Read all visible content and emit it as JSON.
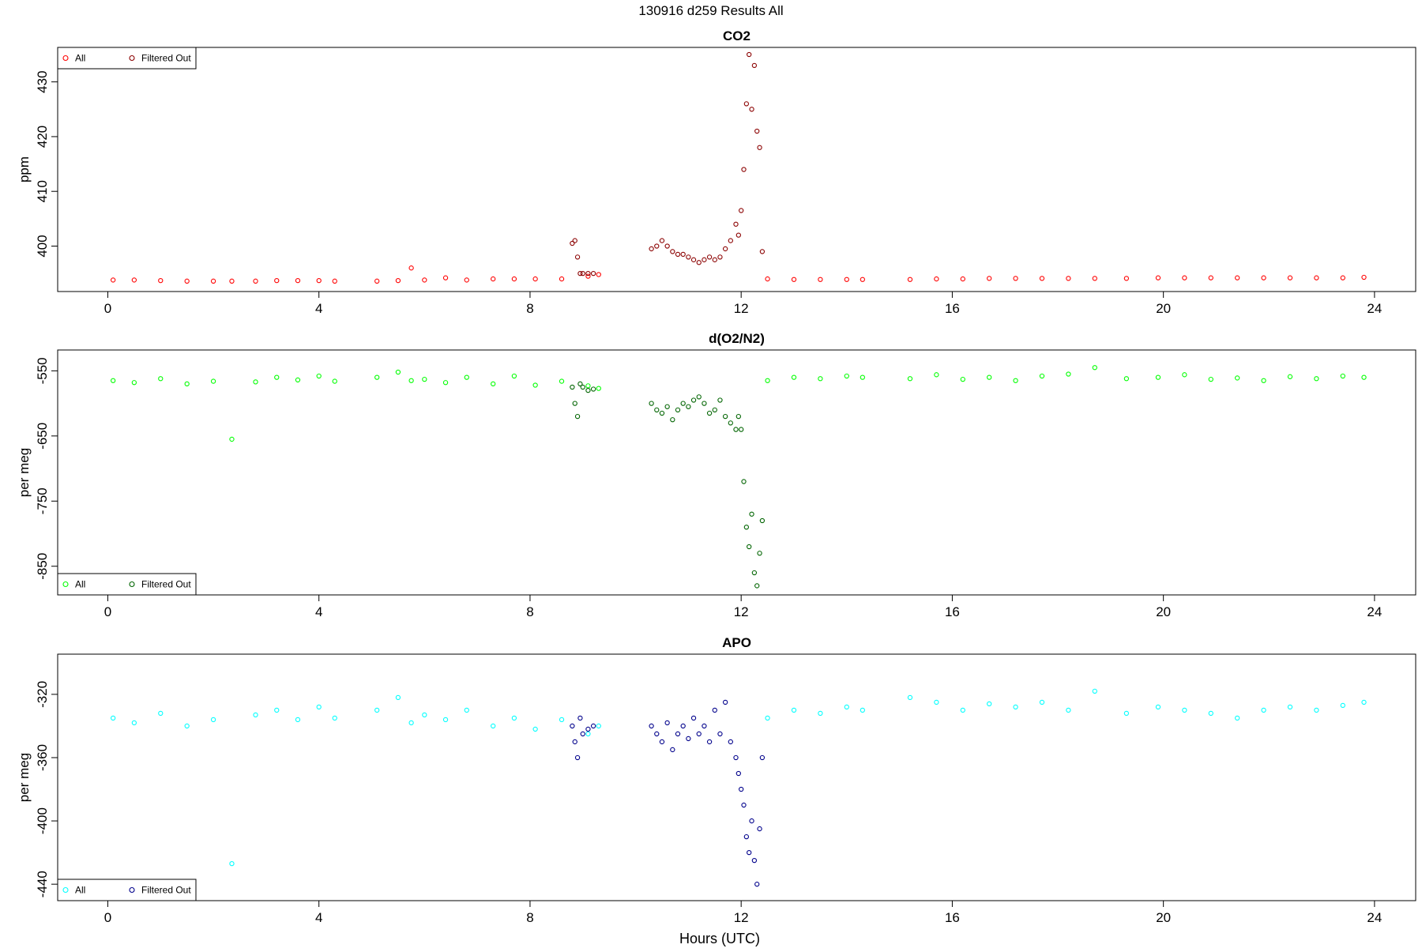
{
  "title": "130916   d259   Results All",
  "x_label": "Hours (UTC)",
  "chart_data": [
    {
      "type": "scatter",
      "title": "CO2",
      "y_label": "ppm",
      "xlim": [
        -0.95,
        24.78
      ],
      "xticks": [
        0,
        4,
        8,
        12,
        16,
        20,
        24
      ],
      "ylim": [
        391.7,
        436.3
      ],
      "yticks": [
        400,
        410,
        420,
        430
      ],
      "legend": "top-left",
      "series": [
        {
          "name": "All",
          "color": "#ff0000",
          "x": [
            0.1,
            0.5,
            1,
            1.5,
            2,
            2.35,
            2.8,
            3.2,
            3.6,
            4,
            4.3,
            5.1,
            5.5,
            5.75,
            6,
            6.4,
            6.8,
            7.3,
            7.7,
            8.1,
            8.6,
            9.1,
            9.3,
            12.5,
            13,
            13.5,
            14,
            14.3,
            15.2,
            15.7,
            16.2,
            16.7,
            17.2,
            17.7,
            18.2,
            18.7,
            19.3,
            19.9,
            20.4,
            20.9,
            21.4,
            21.9,
            22.4,
            22.9,
            23.4,
            23.8
          ],
          "values": [
            393.8,
            393.8,
            393.7,
            393.6,
            393.6,
            393.6,
            393.6,
            393.7,
            393.7,
            393.7,
            393.6,
            393.6,
            393.7,
            396,
            393.8,
            394.2,
            393.8,
            394,
            394,
            394,
            394,
            394.5,
            394.8,
            394,
            393.9,
            393.9,
            393.9,
            393.9,
            393.9,
            394,
            394,
            394.1,
            394.1,
            394.1,
            394.1,
            394.1,
            394.1,
            394.2,
            394.2,
            394.2,
            394.2,
            394.2,
            394.2,
            394.2,
            394.2,
            394.3
          ]
        },
        {
          "name": "Filtered Out",
          "color": "#8b0000",
          "x": [
            8.8,
            8.85,
            8.9,
            8.95,
            9.0,
            9.1,
            9.2,
            10.3,
            10.4,
            10.5,
            10.6,
            10.7,
            10.8,
            10.9,
            11.0,
            11.1,
            11.2,
            11.3,
            11.4,
            11.5,
            11.6,
            11.7,
            11.8,
            11.9,
            11.95,
            12.0,
            12.05,
            12.1,
            12.15,
            12.2,
            12.25,
            12.3,
            12.35,
            12.4
          ],
          "values": [
            400.5,
            401,
            398,
            395,
            395,
            395,
            395,
            399.5,
            400,
            401,
            400,
            399,
            398.5,
            398.5,
            398,
            397.5,
            397,
            397.5,
            398,
            397.5,
            398,
            399.5,
            401,
            404,
            402,
            406.5,
            414,
            426,
            435,
            425,
            433,
            421,
            418,
            399
          ]
        }
      ]
    },
    {
      "type": "scatter",
      "title": "d(O2/N2)",
      "y_label": "per meg",
      "xlim": [
        -0.95,
        24.78
      ],
      "xticks": [
        0,
        4,
        8,
        12,
        16,
        20,
        24
      ],
      "ylim": [
        -894,
        -518
      ],
      "yticks": [
        -550,
        -650,
        -750,
        -850
      ],
      "legend": "bottom-left",
      "series": [
        {
          "name": "All",
          "color": "#00ff00",
          "x": [
            0.1,
            0.5,
            1,
            1.5,
            2,
            2.35,
            2.8,
            3.2,
            3.6,
            4,
            4.3,
            5.1,
            5.5,
            5.75,
            6,
            6.4,
            6.8,
            7.3,
            7.7,
            8.1,
            8.6,
            9.1,
            9.3,
            12.5,
            13,
            13.5,
            14,
            14.3,
            15.2,
            15.7,
            16.2,
            16.7,
            17.2,
            17.7,
            18.2,
            18.7,
            19.3,
            19.9,
            20.4,
            20.9,
            21.4,
            21.9,
            22.4,
            22.9,
            23.4,
            23.8
          ],
          "values": [
            -565,
            -568,
            -562,
            -570,
            -566,
            -655,
            -567,
            -560,
            -564,
            -558,
            -566,
            -560,
            -552,
            -565,
            -563,
            -568,
            -560,
            -570,
            -558,
            -572,
            -566,
            -573,
            -577,
            -565,
            -560,
            -562,
            -558,
            -560,
            -562,
            -556,
            -563,
            -560,
            -565,
            -558,
            -555,
            -545,
            -562,
            -560,
            -556,
            -563,
            -561,
            -565,
            -559,
            -562,
            -558,
            -560
          ]
        },
        {
          "name": "Filtered Out",
          "color": "#006400",
          "x": [
            8.8,
            8.85,
            8.9,
            8.95,
            9.0,
            9.1,
            9.2,
            10.3,
            10.4,
            10.5,
            10.6,
            10.7,
            10.8,
            10.9,
            11.0,
            11.1,
            11.2,
            11.3,
            11.4,
            11.5,
            11.6,
            11.7,
            11.8,
            11.9,
            11.95,
            12.0,
            12.05,
            12.1,
            12.15,
            12.2,
            12.25,
            12.3,
            12.35,
            12.4
          ],
          "values": [
            -575,
            -600,
            -620,
            -570,
            -575,
            -580,
            -578,
            -600,
            -610,
            -615,
            -605,
            -625,
            -610,
            -600,
            -605,
            -595,
            -590,
            -600,
            -615,
            -610,
            -595,
            -620,
            -630,
            -640,
            -620,
            -640,
            -720,
            -790,
            -820,
            -770,
            -860,
            -880,
            -830,
            -780
          ]
        }
      ]
    },
    {
      "type": "scatter",
      "title": "APO",
      "y_label": "per meg",
      "xlim": [
        -0.95,
        24.78
      ],
      "xticks": [
        0,
        4,
        8,
        12,
        16,
        20,
        24
      ],
      "ylim": [
        -450.4,
        -294.6
      ],
      "yticks": [
        -320,
        -360,
        -400,
        -440
      ],
      "legend": "bottom-left",
      "series": [
        {
          "name": "All",
          "color": "#00ffff",
          "x": [
            0.1,
            0.5,
            1,
            1.5,
            2,
            2.35,
            2.8,
            3.2,
            3.6,
            4,
            4.3,
            5.1,
            5.5,
            5.75,
            6,
            6.4,
            6.8,
            7.3,
            7.7,
            8.1,
            8.6,
            9.1,
            9.3,
            12.5,
            13,
            13.5,
            14,
            14.3,
            15.2,
            15.7,
            16.2,
            16.7,
            17.2,
            17.7,
            18.2,
            18.7,
            19.3,
            19.9,
            20.4,
            20.9,
            21.4,
            21.9,
            22.4,
            22.9,
            23.4,
            23.8
          ],
          "values": [
            -335,
            -338,
            -332,
            -340,
            -336,
            -427,
            -333,
            -330,
            -336,
            -328,
            -335,
            -330,
            -322,
            -338,
            -333,
            -336,
            -330,
            -340,
            -335,
            -342,
            -336,
            -345,
            -340,
            -335,
            -330,
            -332,
            -328,
            -330,
            -322,
            -325,
            -330,
            -326,
            -328,
            -325,
            -330,
            -318,
            -332,
            -328,
            -330,
            -332,
            -335,
            -330,
            -328,
            -330,
            -327,
            -325
          ]
        },
        {
          "name": "Filtered Out",
          "color": "#00008b",
          "x": [
            8.8,
            8.85,
            8.9,
            8.95,
            9.0,
            9.1,
            9.2,
            10.3,
            10.4,
            10.5,
            10.6,
            10.7,
            10.8,
            10.9,
            11.0,
            11.1,
            11.2,
            11.3,
            11.4,
            11.5,
            11.6,
            11.7,
            11.8,
            11.9,
            11.95,
            12.0,
            12.05,
            12.1,
            12.15,
            12.2,
            12.25,
            12.3,
            12.35,
            12.4
          ],
          "values": [
            -340,
            -350,
            -360,
            -335,
            -345,
            -342,
            -340,
            -340,
            -345,
            -350,
            -338,
            -355,
            -345,
            -340,
            -348,
            -335,
            -345,
            -340,
            -350,
            -330,
            -345,
            -325,
            -350,
            -360,
            -370,
            -380,
            -390,
            -410,
            -420,
            -400,
            -425,
            -440,
            -405,
            -360
          ]
        }
      ]
    }
  ]
}
